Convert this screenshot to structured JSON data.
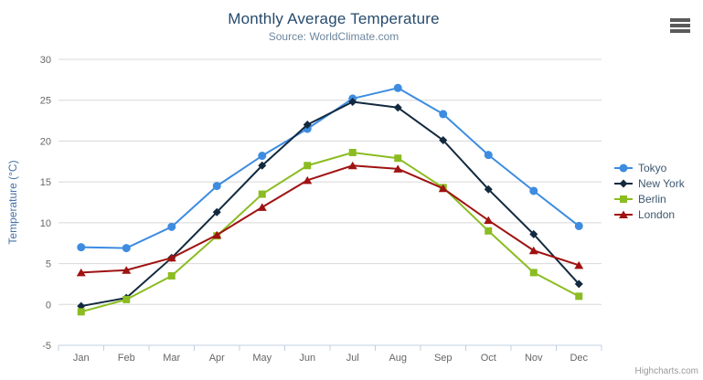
{
  "chart_data": {
    "type": "line",
    "title": "Monthly Average Temperature",
    "subtitle": "Source: WorldClimate.com",
    "categories": [
      "Jan",
      "Feb",
      "Mar",
      "Apr",
      "May",
      "Jun",
      "Jul",
      "Aug",
      "Sep",
      "Oct",
      "Nov",
      "Dec"
    ],
    "xlabel": "",
    "ylabel": "Temperature (°C)",
    "ylim": [
      -5,
      30
    ],
    "yticks": [
      -5,
      0,
      5,
      10,
      15,
      20,
      25,
      30
    ],
    "grid": true,
    "legend_position": "right",
    "series": [
      {
        "name": "Tokyo",
        "color": "#3d8ce0",
        "marker": "circle",
        "values": [
          7.0,
          6.9,
          9.5,
          14.5,
          18.2,
          21.5,
          25.2,
          26.5,
          23.3,
          18.3,
          13.9,
          9.6
        ]
      },
      {
        "name": "New York",
        "color": "#13293f",
        "marker": "diamond",
        "values": [
          -0.2,
          0.8,
          5.7,
          11.3,
          17.0,
          22.0,
          24.8,
          24.1,
          20.1,
          14.1,
          8.6,
          2.5
        ]
      },
      {
        "name": "Berlin",
        "color": "#8bbc21",
        "marker": "square",
        "values": [
          -0.9,
          0.6,
          3.5,
          8.4,
          13.5,
          17.0,
          18.6,
          17.9,
          14.3,
          9.0,
          3.9,
          1.0
        ]
      },
      {
        "name": "London",
        "color": "#a01212",
        "marker": "triangle",
        "values": [
          3.9,
          4.2,
          5.7,
          8.5,
          11.9,
          15.2,
          17.0,
          16.6,
          14.2,
          10.3,
          6.6,
          4.8
        ]
      }
    ],
    "colors": {
      "grid": "#d8d8d8",
      "axis_line": "#c0d0e0",
      "tick_label": "#666666",
      "title": "#274b6d",
      "subtitle": "#6d869f",
      "y_axis_title": "#4572a7",
      "legend_text": "#3e576f"
    }
  },
  "credits": {
    "text": "Highcharts.com"
  },
  "context_menu": {
    "icon": "hamburger-icon"
  }
}
